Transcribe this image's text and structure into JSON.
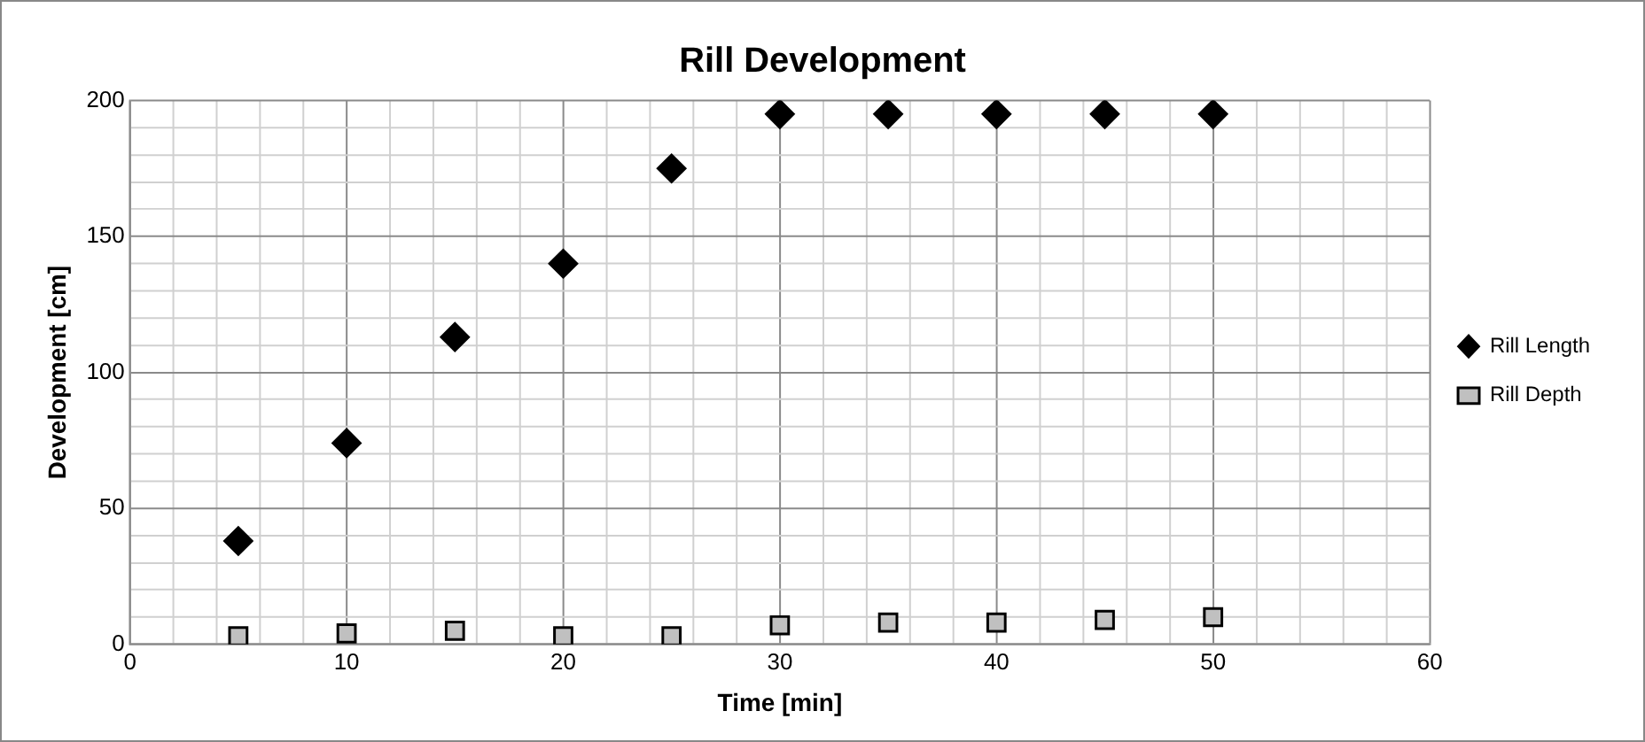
{
  "chart_data": {
    "type": "scatter",
    "title": "Rill Development",
    "xlabel": "Time [min]",
    "ylabel": "Development [cm]",
    "x": [
      5,
      10,
      15,
      20,
      25,
      30,
      35,
      40,
      45,
      50
    ],
    "series": [
      {
        "name": "Rill Length",
        "color": "#000000",
        "marker": "diamond",
        "values": [
          38,
          74,
          113,
          140,
          175,
          195,
          195,
          195,
          195,
          195
        ]
      },
      {
        "name": "Rill Depth",
        "color": "#c0c0c0",
        "marker": "square",
        "values": [
          3,
          4,
          5,
          3,
          3,
          7,
          8,
          8,
          9,
          10
        ]
      }
    ],
    "xlim": [
      0,
      60
    ],
    "xticks": [
      0,
      {
        "value": 2,
        "label": null
      },
      {
        "value": 4,
        "label": null
      },
      {
        "value": 6,
        "label": null
      },
      {
        "value": 8,
        "label": null
      },
      10,
      {
        "value": 12,
        "label": null
      },
      {
        "value": 14,
        "label": null
      },
      {
        "value": 16,
        "label": null
      },
      {
        "value": 18,
        "label": null
      },
      20,
      {
        "value": 22,
        "label": null
      },
      {
        "value": 24,
        "label": null
      },
      {
        "value": 26,
        "label": null
      },
      {
        "value": 28,
        "label": null
      },
      30,
      {
        "value": 32,
        "label": null
      },
      {
        "value": 34,
        "label": null
      },
      {
        "value": 36,
        "label": null
      },
      {
        "value": 38,
        "label": null
      },
      40,
      {
        "value": 42,
        "label": null
      },
      {
        "value": 44,
        "label": null
      },
      {
        "value": 46,
        "label": null
      },
      {
        "value": 48,
        "label": null
      },
      50,
      {
        "value": 52,
        "label": null
      },
      {
        "value": 54,
        "label": null
      },
      {
        "value": 56,
        "label": null
      },
      {
        "value": 58,
        "label": null
      },
      60
    ],
    "ylim": [
      0,
      200
    ],
    "yticks": [
      0,
      {
        "value": 10,
        "label": null
      },
      {
        "value": 20,
        "label": null
      },
      {
        "value": 30,
        "label": null
      },
      {
        "value": 40,
        "label": null
      },
      50,
      {
        "value": 60,
        "label": null
      },
      {
        "value": 70,
        "label": null
      },
      {
        "value": 80,
        "label": null
      },
      {
        "value": 90,
        "label": null
      },
      100,
      {
        "value": 110,
        "label": null
      },
      {
        "value": 120,
        "label": null
      },
      {
        "value": 130,
        "label": null
      },
      {
        "value": 140,
        "label": null
      },
      150,
      {
        "value": 160,
        "label": null
      },
      {
        "value": 170,
        "label": null
      },
      {
        "value": 180,
        "label": null
      },
      {
        "value": 190,
        "label": null
      },
      200
    ],
    "grid": true,
    "legend": "right"
  }
}
